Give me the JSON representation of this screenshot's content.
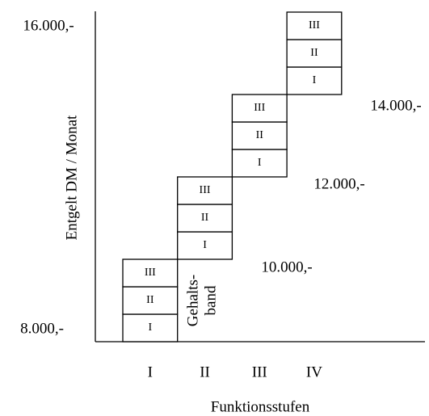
{
  "axis": {
    "y_title": "Entgelt DM / Monat",
    "y_top_label": "16.000,-",
    "y_bottom_label": "8.000,-",
    "x_title": "Funktionsstufen",
    "categories": [
      "I",
      "II",
      "III",
      "IV"
    ]
  },
  "groups": [
    {
      "levels": [
        "I",
        "II",
        "III"
      ]
    },
    {
      "levels": [
        "I",
        "II",
        "III"
      ]
    },
    {
      "levels": [
        "I",
        "II",
        "III"
      ]
    },
    {
      "levels": [
        "I",
        "II",
        "III"
      ]
    }
  ],
  "side_labels": [
    "10.000,-",
    "12.000,-",
    "14.000,-"
  ],
  "band_label": [
    "Gehalts-",
    "band"
  ]
}
